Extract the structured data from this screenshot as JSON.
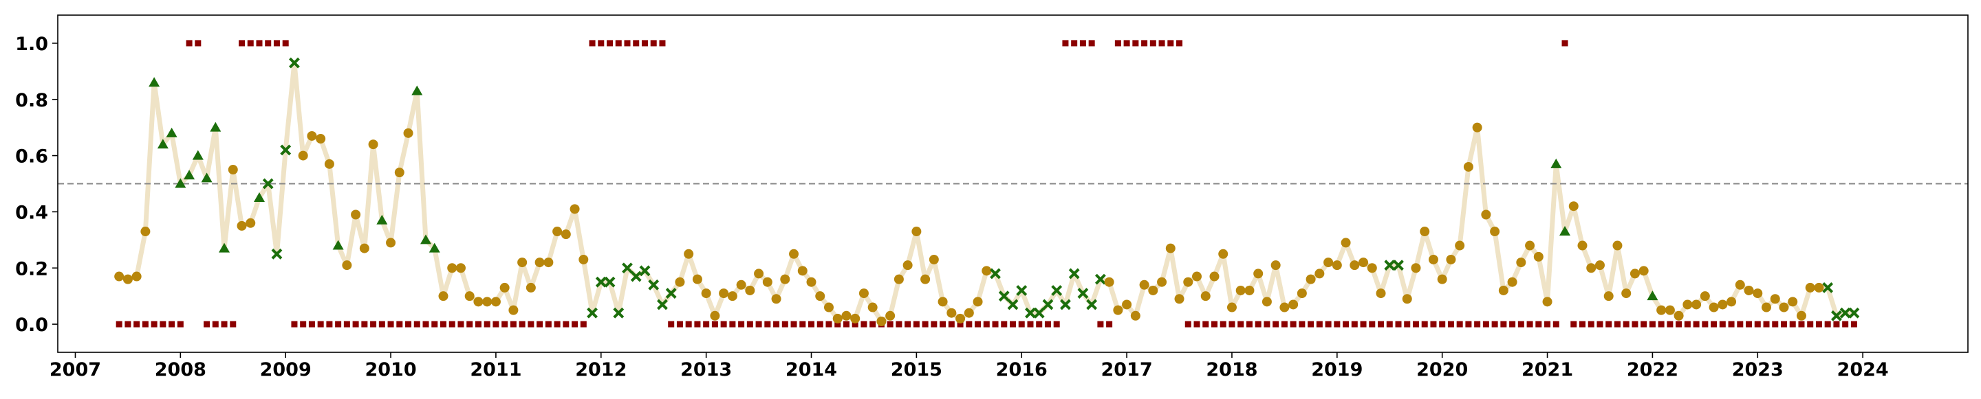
{
  "chart_data": {
    "type": "line",
    "xlabel": "",
    "ylabel": "",
    "xlim": [
      "2006-11",
      "2025-01"
    ],
    "ylim": [
      -0.1,
      1.1
    ],
    "x_ticks": [
      "2007",
      "2008",
      "2009",
      "2010",
      "2011",
      "2012",
      "2013",
      "2014",
      "2015",
      "2016",
      "2017",
      "2018",
      "2019",
      "2020",
      "2021",
      "2022",
      "2023",
      "2024"
    ],
    "y_ticks": [
      "0.0",
      "0.2",
      "0.4",
      "0.6",
      "0.8",
      "1.0"
    ],
    "reference_line": {
      "y": 0.5,
      "style": "dashed",
      "color": "#888888"
    },
    "grid": false,
    "legend": "none",
    "colors": {
      "line": "#efe3c6",
      "neutral_point": "#b8860b",
      "high_point": "#1b6e0b",
      "low_point": "#1b6e0b",
      "regime_marker": "#8b0000"
    },
    "series_values": {
      "start": "2007-06",
      "frequency": "monthly",
      "values": [
        0.17,
        0.16,
        0.17,
        0.33,
        0.86,
        0.64,
        0.68,
        0.5,
        0.53,
        0.6,
        0.52,
        0.7,
        0.27,
        0.55,
        0.35,
        0.36,
        0.45,
        0.5,
        0.25,
        0.62,
        0.93,
        0.6,
        0.67,
        0.66,
        0.57,
        0.28,
        0.21,
        0.39,
        0.27,
        0.64,
        0.37,
        0.29,
        0.54,
        0.68,
        0.83,
        0.3,
        0.27,
        0.1,
        0.2,
        0.2,
        0.1,
        0.08,
        0.08,
        0.08,
        0.13,
        0.05,
        0.22,
        0.13,
        0.22,
        0.22,
        0.33,
        0.32,
        0.41,
        0.23,
        0.04,
        0.15,
        0.15,
        0.04,
        0.2,
        0.17,
        0.19,
        0.14,
        0.07,
        0.11,
        0.15,
        0.25,
        0.16,
        0.11,
        0.03,
        0.11,
        0.1,
        0.14,
        0.12,
        0.18,
        0.15,
        0.09,
        0.16,
        0.25,
        0.19,
        0.15,
        0.1,
        0.06,
        0.02,
        0.03,
        0.02,
        0.11,
        0.06,
        0.01,
        0.03,
        0.16,
        0.21,
        0.33,
        0.16,
        0.23,
        0.08,
        0.04,
        0.02,
        0.04,
        0.08,
        0.19,
        0.18,
        0.1,
        0.07,
        0.12,
        0.04,
        0.04,
        0.07,
        0.12,
        0.07,
        0.18,
        0.11,
        0.07,
        0.16,
        0.15,
        0.05,
        0.07,
        0.03,
        0.14,
        0.12,
        0.15,
        0.27,
        0.09,
        0.15,
        0.17,
        0.1,
        0.17,
        0.25,
        0.06,
        0.12,
        0.12,
        0.18,
        0.08,
        0.21,
        0.06,
        0.07,
        0.11,
        0.16,
        0.18,
        0.22,
        0.21,
        0.29,
        0.21,
        0.22,
        0.2,
        0.11,
        0.21,
        0.21,
        0.09,
        0.2,
        0.33,
        0.23,
        0.16,
        0.23,
        0.28,
        0.56,
        0.7,
        0.39,
        0.33,
        0.12,
        0.15,
        0.22,
        0.28,
        0.24,
        0.08,
        0.57,
        0.33,
        0.42,
        0.28,
        0.2,
        0.21,
        0.1,
        0.28,
        0.11,
        0.18,
        0.19,
        0.1,
        0.05,
        0.05,
        0.03,
        0.07,
        0.07,
        0.1,
        0.06,
        0.07,
        0.08,
        0.14,
        0.12,
        0.11,
        0.06,
        0.09,
        0.06,
        0.08,
        0.03,
        0.13,
        0.13,
        0.13,
        0.03,
        0.04,
        0.04
      ],
      "marker_types": "TTTTHHHHHHHHHTTTHLLLLTTTTHTTTTHTTTHHHTTTTTTTTTTTTTTTTTLLLLLLLLLLTTTTTTTTTTTTTTTTTTTTTTTTTTTTTTTTTTTTLLLLLLLLLLLLLTTTTTTTTTTTTTTTTTTTTTTTTTTTTTTTTLLTTTTTTTTTTTTTTTTTHHTTTTTTTTTHTTTTTTTTTTTTTTTTTTTLLLLLLLLLLTTTTTTT",
      "regime_flags": "000000001100001111110000000000000000000000000000000000111111111000000000000000000000000000000000000000000000111100111111110000000000000000000000000000000000000000000100000000000000000000000000000000000000000000000000000000000000000001111111111010"
    }
  }
}
